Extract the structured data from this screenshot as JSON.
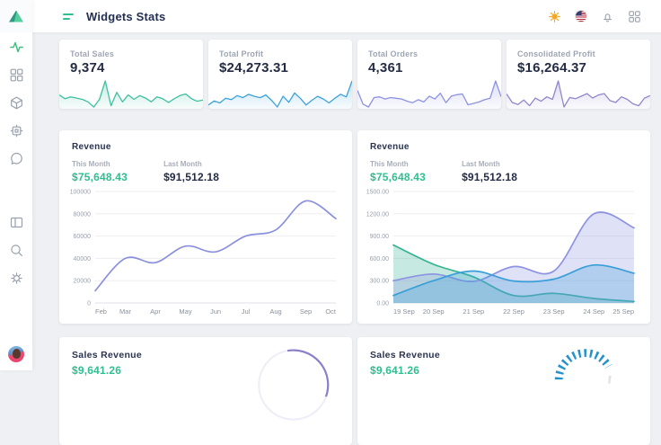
{
  "header": {
    "title": "Widgets Stats",
    "icons": [
      "sun-icon",
      "us-flag-icon",
      "bell-icon",
      "apps-grid-icon"
    ]
  },
  "sidebar": {
    "icons": [
      "activity-icon",
      "dashboard-icon",
      "box-icon",
      "cpu-icon",
      "chat-icon",
      "layout-icon",
      "search-icon",
      "settings-icon",
      "user-avatar"
    ],
    "active_icon": "activity-icon"
  },
  "colors": {
    "accent_green": "#2fbf8e",
    "spark_green": "#3fc0a0",
    "spark_blue": "#3da2dc",
    "spark_purple": "#8d92e2",
    "line_purple": "#8b90dd",
    "dark_text": "#242c45",
    "muted_text": "#9ea6b4"
  },
  "stat_cards": [
    {
      "label": "Total Sales",
      "value": "9,374"
    },
    {
      "label": "Total Profit",
      "value": "$24,273.31"
    },
    {
      "label": "Total Orders",
      "value": "4,361"
    },
    {
      "label": "Consolidated Profit",
      "value": "$16,264.37"
    }
  ],
  "revenue_cards": [
    {
      "title": "Revenue",
      "this_label": "This Month",
      "this_value": "$75,648.43",
      "last_label": "Last Month",
      "last_value": "$91,512.18"
    },
    {
      "title": "Revenue",
      "this_label": "This Month",
      "this_value": "$75,648.43",
      "last_label": "Last Month",
      "last_value": "$91,512.18"
    }
  ],
  "sales_cards": [
    {
      "title": "Sales Revenue",
      "value": "$9,641.26"
    },
    {
      "title": "Sales Revenue",
      "value": "$9,641.26"
    }
  ],
  "chart_data": [
    {
      "id": "spark_total_sales",
      "type": "sparkline",
      "color": "#3fc0a0",
      "values": [
        52,
        40,
        46,
        42,
        38,
        30,
        14,
        38,
        96,
        18,
        60,
        30,
        52,
        38,
        50,
        42,
        30,
        46,
        40,
        28,
        40,
        50,
        55,
        40,
        32,
        36
      ]
    },
    {
      "id": "spark_total_profit",
      "type": "sparkline",
      "color": "#3da2dc",
      "values": [
        20,
        32,
        26,
        40,
        36,
        48,
        42,
        52,
        46,
        42,
        50,
        34,
        14,
        46,
        28,
        56,
        40,
        20,
        34,
        46,
        38,
        26,
        40,
        52,
        44,
        92
      ]
    },
    {
      "id": "spark_total_orders",
      "type": "sparkline",
      "color": "#8d92e2",
      "values": [
        60,
        22,
        14,
        40,
        42,
        36,
        40,
        38,
        36,
        30,
        26,
        34,
        28,
        44,
        36,
        52,
        26,
        44,
        48,
        50,
        20,
        24,
        28,
        34,
        38,
        86,
        42
      ]
    },
    {
      "id": "spark_consolidated_profit",
      "type": "sparkline",
      "color": "#9087cc",
      "values": [
        55,
        28,
        22,
        36,
        18,
        42,
        32,
        46,
        38,
        96,
        14,
        44,
        40,
        48,
        56,
        42,
        52,
        56,
        34,
        28,
        46,
        38,
        24,
        18,
        42,
        50
      ]
    },
    {
      "id": "revenue_monthly",
      "type": "line",
      "title": "Revenue",
      "categories": [
        "Feb",
        "Mar",
        "Apr",
        "May",
        "Jun",
        "Jul",
        "Aug",
        "Sep",
        "Oct"
      ],
      "ylim": [
        0,
        100000
      ],
      "yticks": [
        0,
        20000,
        40000,
        60000,
        80000,
        100000
      ],
      "ytick_labels": [
        "0",
        "20000",
        "40000",
        "60000",
        "80000",
        "100000"
      ],
      "grid": true,
      "legend": "none",
      "series": [
        {
          "name": "Revenue",
          "color": "#8b90dd",
          "fill": false,
          "values": [
            11000,
            40000,
            36200,
            51000,
            45800,
            60000,
            65500,
            91512,
            75648
          ]
        }
      ]
    },
    {
      "id": "revenue_daily",
      "type": "area",
      "title": "Revenue",
      "categories": [
        "19 Sep",
        "20 Sep",
        "21 Sep",
        "22 Sep",
        "23 Sep",
        "24 Sep",
        "25 Sep"
      ],
      "ylim": [
        0,
        1500
      ],
      "yticks": [
        0,
        300,
        600,
        900,
        1200,
        1500
      ],
      "ytick_labels": [
        "0.00",
        "300.00",
        "600.00",
        "900.00",
        "1200.00",
        "1500.00"
      ],
      "grid": true,
      "legend": "none",
      "series": [
        {
          "name": "series-green",
          "color": "#34b393",
          "fill": true,
          "values": [
            780,
            520,
            350,
            100,
            130,
            60,
            20
          ]
        },
        {
          "name": "series-purple",
          "color": "#8d92e2",
          "fill": true,
          "values": [
            300,
            390,
            290,
            490,
            430,
            1200,
            1010
          ]
        },
        {
          "name": "series-blue",
          "color": "#3a9fd8",
          "fill": true,
          "values": [
            100,
            300,
            430,
            295,
            320,
            510,
            400
          ]
        }
      ]
    },
    {
      "id": "sales_revenue_ring",
      "type": "ring",
      "color": "#8a7fc8",
      "track": "#efedf6"
    },
    {
      "id": "sales_revenue_gauge",
      "type": "gauge",
      "color": "#2492cc",
      "track": "#dfe3e8"
    }
  ]
}
